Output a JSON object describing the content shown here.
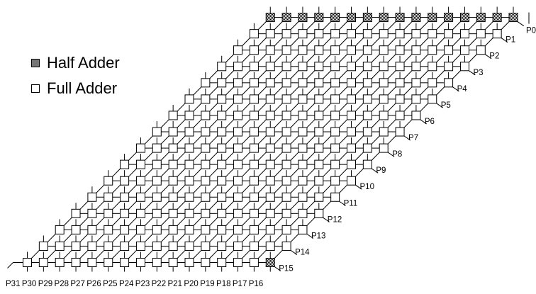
{
  "legend": {
    "half_adder": "Half Adder",
    "full_adder": "Full Adder"
  },
  "outputs_right": [
    "P0",
    "P1",
    "P2",
    "P3",
    "P4",
    "P5",
    "P6",
    "P7",
    "P8",
    "P9",
    "P10",
    "P11",
    "P12",
    "P13",
    "P14",
    "P15"
  ],
  "outputs_bottom": [
    "P16",
    "P17",
    "P18",
    "P19",
    "P20",
    "P21",
    "P22",
    "P23",
    "P24",
    "P25",
    "P26",
    "P27",
    "P28",
    "P29",
    "P30",
    "P31"
  ],
  "colors": {
    "line": "#000000",
    "full_adder_fill": "#ffffff",
    "half_adder_fill": "#b0b0b0"
  }
}
